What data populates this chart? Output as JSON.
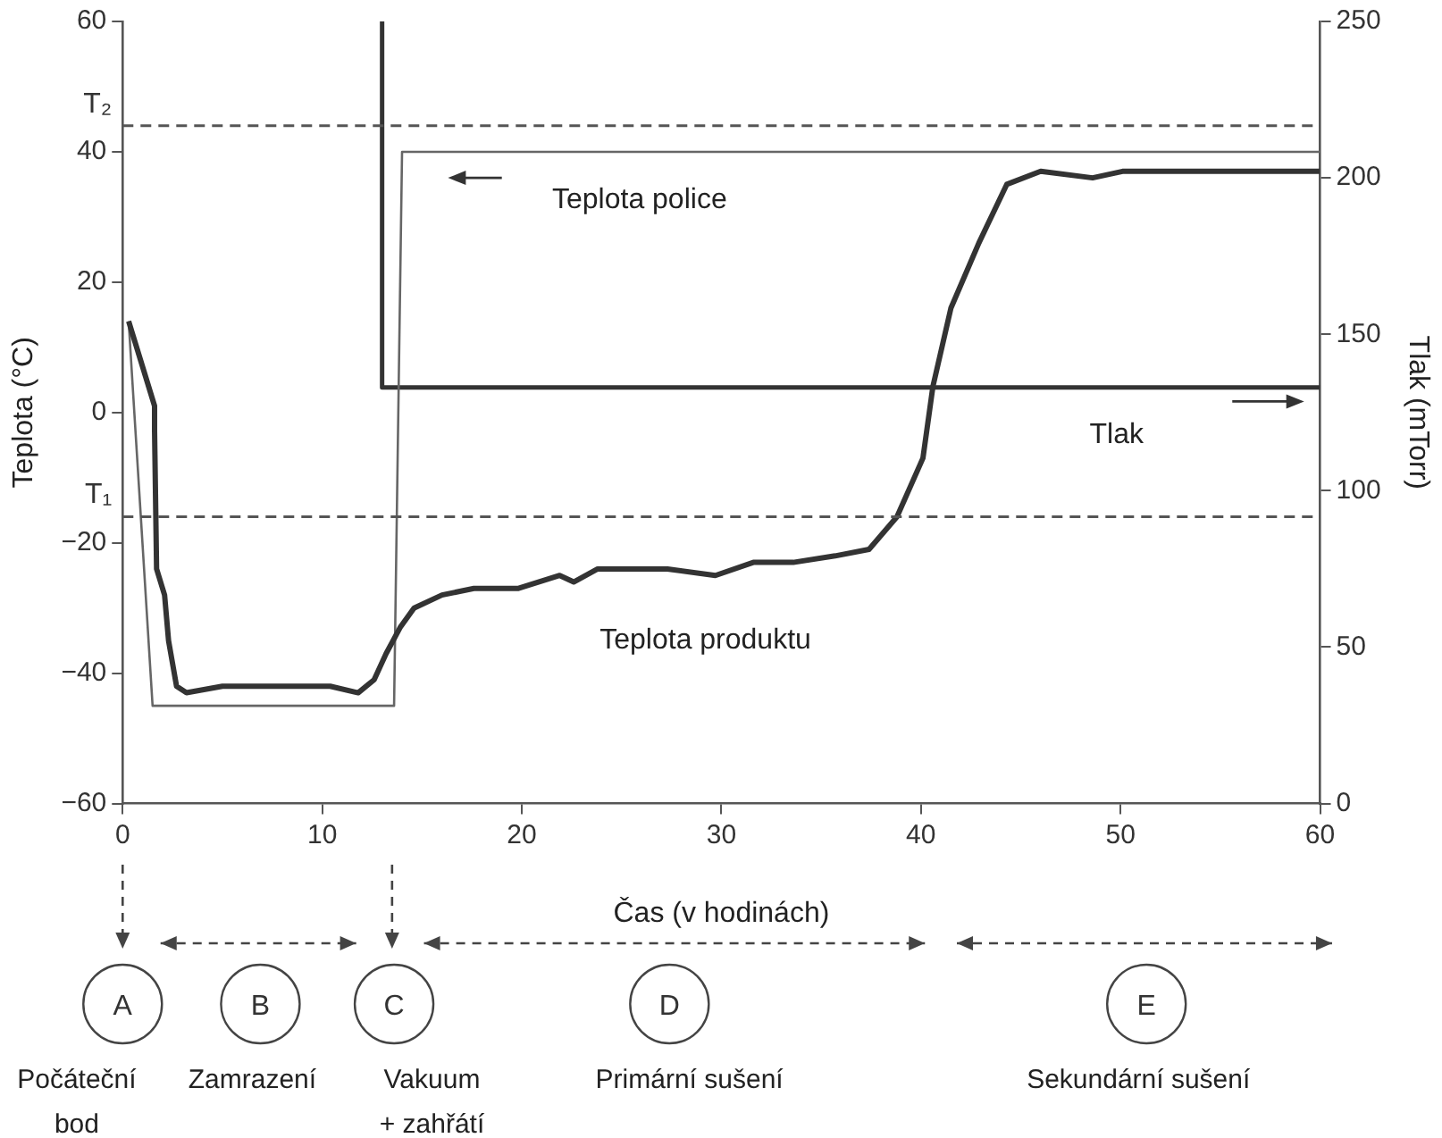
{
  "chart_data": {
    "type": "line",
    "xlabel": "Čas (v hodinách)",
    "ylabel": "Teplota (°C)",
    "y2label": "Tlak (mTorr)",
    "xlim": [
      0,
      60
    ],
    "xticks": [
      0,
      10,
      20,
      30,
      40,
      50,
      60
    ],
    "ylim": [
      -60,
      60
    ],
    "yticks": [
      -60,
      -40,
      -20,
      0,
      20,
      40,
      60
    ],
    "y2lim": [
      0,
      250
    ],
    "y2ticks": [
      0,
      50,
      100,
      150,
      200,
      250
    ],
    "grid": false,
    "legend": false,
    "marker": "none",
    "series": [
      {
        "name": "Teplota produktu",
        "color": "#333333",
        "x": [
          0.3,
          1.6,
          1.6,
          1.7,
          2.1,
          2.3,
          2.7,
          3.2,
          5,
          7.3,
          9.5,
          10.4,
          11.8,
          12.6,
          13.2,
          13.9,
          14.6,
          16,
          17.6,
          19.8,
          21.9,
          22.6,
          23.8,
          27.3,
          29.7,
          31.6,
          33.6,
          35.7,
          37.4,
          38.8,
          40.1,
          40.6,
          41.5,
          42.9,
          44.3,
          46,
          48.6,
          50.1,
          51,
          60
        ],
        "values": [
          14,
          1,
          -3,
          -24,
          -28,
          -35,
          -42,
          -43,
          -42,
          -42,
          -42,
          -42,
          -43,
          -41,
          -37,
          -33,
          -30,
          -28,
          -27,
          -27,
          -25,
          -26,
          -24,
          -24,
          -25,
          -23,
          -23,
          -22,
          -21,
          -16,
          -7,
          4,
          16,
          26,
          35,
          37,
          36,
          37,
          37,
          37
        ]
      },
      {
        "name": "Teplota police",
        "color": "#666666",
        "x": [
          0.3,
          1.5,
          13.6,
          14,
          60
        ],
        "values": [
          14,
          -45,
          -45,
          40,
          40
        ]
      },
      {
        "name": "Tlak",
        "color": "#333333",
        "axis": "y2",
        "x": [
          13,
          13,
          60
        ],
        "values": [
          250,
          133,
          133
        ]
      }
    ],
    "ref_lines": [
      {
        "axis": "y",
        "value": 44,
        "label": "T₂",
        "line_style": "dashed",
        "color": "#555555"
      },
      {
        "axis": "y",
        "value": -16,
        "label": "T₁",
        "line_style": "dashed",
        "color": "#555555"
      }
    ],
    "annotations": [
      "A",
      "B",
      "C",
      "D",
      "E",
      "Počáteční bod",
      "Zamrazení",
      "Vakuum + zahřátí",
      "Primární sušení",
      "Sekundární sušení"
    ]
  }
}
